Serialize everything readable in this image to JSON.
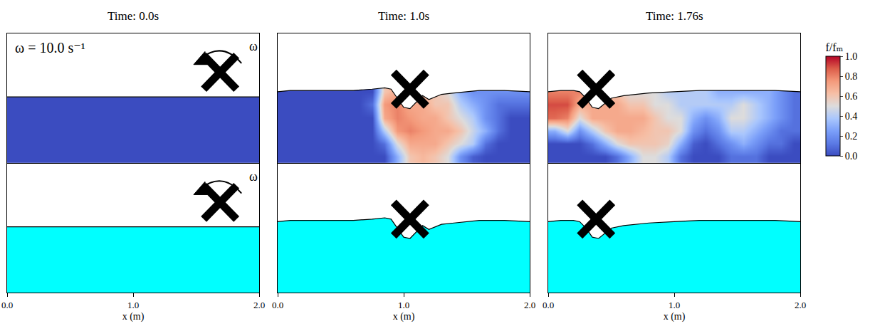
{
  "chart_data": {
    "type": "heatmap",
    "xlabel": "x (m)",
    "xlim": [
      0,
      2
    ],
    "xticks": [
      {
        "value": 0,
        "label": "0.0"
      },
      {
        "value": 1,
        "label": "1.0"
      },
      {
        "value": 2,
        "label": "2.0"
      }
    ],
    "ylim": [
      0,
      1
    ],
    "tick_labels": "x",
    "grid": false,
    "color": "#00ffff",
    "zlabel": "f/fₘ",
    "zlim": [
      0,
      1
    ],
    "zticks": [
      {
        "value": 0,
        "label": "0.0"
      },
      {
        "value": 0.2,
        "label": "0.2"
      },
      {
        "value": 0.4,
        "label": "0.4"
      },
      {
        "value": 0.6,
        "label": "0.6"
      },
      {
        "value": 0.8,
        "label": "0.8"
      },
      {
        "value": 1,
        "label": "1.0"
      }
    ],
    "grid_x": [
      0.05,
      0.15,
      0.25,
      0.35,
      0.45,
      0.55,
      0.65,
      0.75,
      0.85,
      0.95,
      1.05,
      1.15,
      1.25,
      1.35,
      1.45,
      1.55,
      1.65,
      1.75,
      1.85,
      1.95
    ],
    "grid_y": [
      0.05,
      0.15,
      0.25,
      0.35,
      0.45,
      0.55
    ],
    "panels": [
      {
        "title": "Time: 0.0s",
        "note": "ω = 10.0 s⁻¹",
        "rotation_label": "ω",
        "rotor": {
          "x": 1.69,
          "y": 0.7
        },
        "surface": {
          "x": [
            0,
            2
          ],
          "y": [
            0.51,
            0.51
          ]
        },
        "cells": [
          [
            0,
            0,
            0,
            0,
            0,
            0,
            0,
            0,
            0,
            0,
            0,
            0,
            0,
            0,
            0,
            0,
            0,
            0,
            0,
            0
          ],
          [
            0,
            0,
            0,
            0,
            0,
            0,
            0,
            0,
            0,
            0,
            0,
            0,
            0,
            0,
            0,
            0,
            0,
            0,
            0,
            0
          ],
          [
            0,
            0,
            0,
            0,
            0,
            0,
            0,
            0,
            0,
            0,
            0,
            0,
            0,
            0,
            0,
            0,
            0,
            0,
            0,
            0
          ],
          [
            0,
            0,
            0,
            0,
            0,
            0,
            0,
            0,
            0,
            0,
            0,
            0,
            0,
            0,
            0,
            0,
            0,
            0,
            0,
            0
          ],
          [
            0,
            0,
            0,
            0,
            0,
            0,
            0,
            0,
            0,
            0,
            0,
            0,
            0,
            0,
            0,
            0,
            0,
            0,
            0,
            0
          ],
          [
            0,
            0,
            0,
            0,
            0,
            0,
            0,
            0,
            0,
            0,
            0,
            0,
            0,
            0,
            0,
            0,
            0,
            0,
            0,
            0
          ]
        ]
      },
      {
        "title": "Time: 1.0s",
        "rotor": {
          "x": 1.05,
          "y": 0.57
        },
        "surface": {
          "x": [
            0,
            0.1,
            0.2,
            0.4,
            0.6,
            0.75,
            0.85,
            0.9,
            0.95,
            1.0,
            1.05,
            1.1,
            1.15,
            1.2,
            1.3,
            1.4,
            1.6,
            1.8,
            2.0
          ],
          "y": [
            0.55,
            0.56,
            0.56,
            0.56,
            0.56,
            0.57,
            0.58,
            0.57,
            0.5,
            0.43,
            0.42,
            0.47,
            0.52,
            0.49,
            0.53,
            0.54,
            0.56,
            0.56,
            0.55
          ]
        },
        "cells": [
          [
            0,
            0,
            0,
            0,
            0,
            0,
            0,
            0,
            0,
            0.3,
            0.6,
            0.65,
            0.6,
            0.5,
            0.2,
            0.05,
            0,
            0,
            0,
            0
          ],
          [
            0,
            0,
            0,
            0,
            0,
            0,
            0,
            0,
            0.1,
            0.5,
            0.7,
            0.7,
            0.7,
            0.6,
            0.5,
            0.4,
            0.1,
            0,
            0,
            0
          ],
          [
            0,
            0,
            0,
            0,
            0,
            0,
            0,
            0,
            0.4,
            0.75,
            0.8,
            0.75,
            0.7,
            0.7,
            0.6,
            0.45,
            0.3,
            0.1,
            0,
            0
          ],
          [
            0,
            0,
            0,
            0,
            0,
            0,
            0,
            0,
            0.7,
            0.8,
            0.75,
            0.7,
            0.7,
            0.6,
            0.5,
            0.4,
            0.2,
            0.1,
            0,
            0
          ],
          [
            0,
            0,
            0,
            0,
            0,
            0,
            0,
            0.1,
            0.75,
            0.8,
            0.7,
            0.7,
            0.6,
            0.6,
            0.4,
            0.3,
            0.2,
            0.1,
            0.1,
            0.1
          ],
          [
            0,
            0,
            0,
            0,
            0,
            0,
            0,
            0,
            0.6,
            0.7,
            0.7,
            0.6,
            0.6,
            0.5,
            0.3,
            0.2,
            0.2,
            0.2,
            0.2,
            0.2
          ]
        ]
      },
      {
        "title": "Time: 1.76s",
        "rotor": {
          "x": 0.38,
          "y": 0.57
        },
        "surface": {
          "x": [
            0,
            0.1,
            0.2,
            0.25,
            0.3,
            0.35,
            0.4,
            0.45,
            0.5,
            0.6,
            0.8,
            1.0,
            1.2,
            1.4,
            1.6,
            1.8,
            2.0
          ],
          "y": [
            0.55,
            0.56,
            0.56,
            0.55,
            0.5,
            0.43,
            0.42,
            0.46,
            0.5,
            0.52,
            0.54,
            0.55,
            0.56,
            0.56,
            0.56,
            0.56,
            0.55
          ]
        },
        "cells": [
          [
            0,
            0,
            0,
            0,
            0,
            0.1,
            0.3,
            0.5,
            0.5,
            0.4,
            0.1,
            0,
            0,
            0,
            0.1,
            0.1,
            0.1,
            0,
            0,
            0
          ],
          [
            0,
            0,
            0,
            0.1,
            0.3,
            0.5,
            0.6,
            0.6,
            0.6,
            0.55,
            0.3,
            0.05,
            0,
            0.1,
            0.2,
            0.3,
            0.2,
            0.1,
            0.1,
            0
          ],
          [
            0.3,
            0.5,
            0.2,
            0.4,
            0.6,
            0.7,
            0.7,
            0.65,
            0.6,
            0.6,
            0.5,
            0.2,
            0.1,
            0.2,
            0.4,
            0.4,
            0.3,
            0.2,
            0.1,
            0.1
          ],
          [
            0.85,
            0.8,
            0.5,
            0.7,
            0.7,
            0.7,
            0.7,
            0.7,
            0.6,
            0.5,
            0.5,
            0.3,
            0.2,
            0.3,
            0.5,
            0.5,
            0.4,
            0.3,
            0.2,
            0.1
          ],
          [
            0.9,
            0.9,
            0.7,
            0.7,
            0.7,
            0.7,
            0.6,
            0.6,
            0.5,
            0.5,
            0.4,
            0.4,
            0.4,
            0.4,
            0.4,
            0.5,
            0.4,
            0.3,
            0.2,
            0.1
          ],
          [
            0.8,
            0.8,
            0.8,
            0.7,
            0.6,
            0.6,
            0.5,
            0.5,
            0.5,
            0.4,
            0.4,
            0.4,
            0.4,
            0.3,
            0.3,
            0.3,
            0.3,
            0.3,
            0.2,
            0.1
          ]
        ]
      }
    ]
  }
}
